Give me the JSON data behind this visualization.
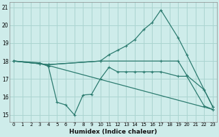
{
  "xlabel": "Humidex (Indice chaleur)",
  "bg_color": "#ceecea",
  "grid_color": "#aad4d0",
  "line_color": "#2a7a6e",
  "xlim": [
    -0.5,
    23.5
  ],
  "ylim": [
    14.6,
    21.3
  ],
  "xticks": [
    0,
    1,
    2,
    3,
    4,
    5,
    6,
    7,
    8,
    9,
    10,
    11,
    12,
    13,
    14,
    15,
    16,
    17,
    18,
    19,
    20,
    21,
    22,
    23
  ],
  "yticks": [
    15,
    16,
    17,
    18,
    19,
    20,
    21
  ],
  "lines": [
    {
      "x": [
        0,
        3,
        4,
        5,
        6,
        7,
        8,
        9,
        10,
        11,
        12,
        13,
        14,
        15,
        16,
        17,
        19,
        20,
        22,
        23
      ],
      "y": [
        18,
        17.9,
        17.7,
        15.7,
        15.55,
        15.0,
        16.1,
        16.15,
        17.0,
        17.65,
        17.4,
        17.4,
        17.4,
        17.4,
        17.4,
        17.4,
        17.15,
        17.15,
        15.5,
        15.3
      ]
    },
    {
      "x": [
        0,
        3,
        4,
        10,
        11,
        12,
        13,
        14,
        15,
        16,
        17,
        19,
        20,
        22,
        23
      ],
      "y": [
        18,
        17.85,
        17.8,
        18.0,
        18.35,
        18.6,
        18.85,
        19.2,
        19.75,
        20.15,
        20.85,
        19.3,
        18.35,
        16.4,
        15.45
      ]
    },
    {
      "x": [
        0,
        3,
        4,
        23
      ],
      "y": [
        18,
        17.85,
        17.75,
        15.3
      ]
    },
    {
      "x": [
        0,
        3,
        4,
        10,
        17,
        19,
        20,
        22,
        23
      ],
      "y": [
        18,
        17.85,
        17.8,
        18.0,
        18.0,
        18.0,
        17.2,
        16.4,
        15.45
      ]
    }
  ]
}
